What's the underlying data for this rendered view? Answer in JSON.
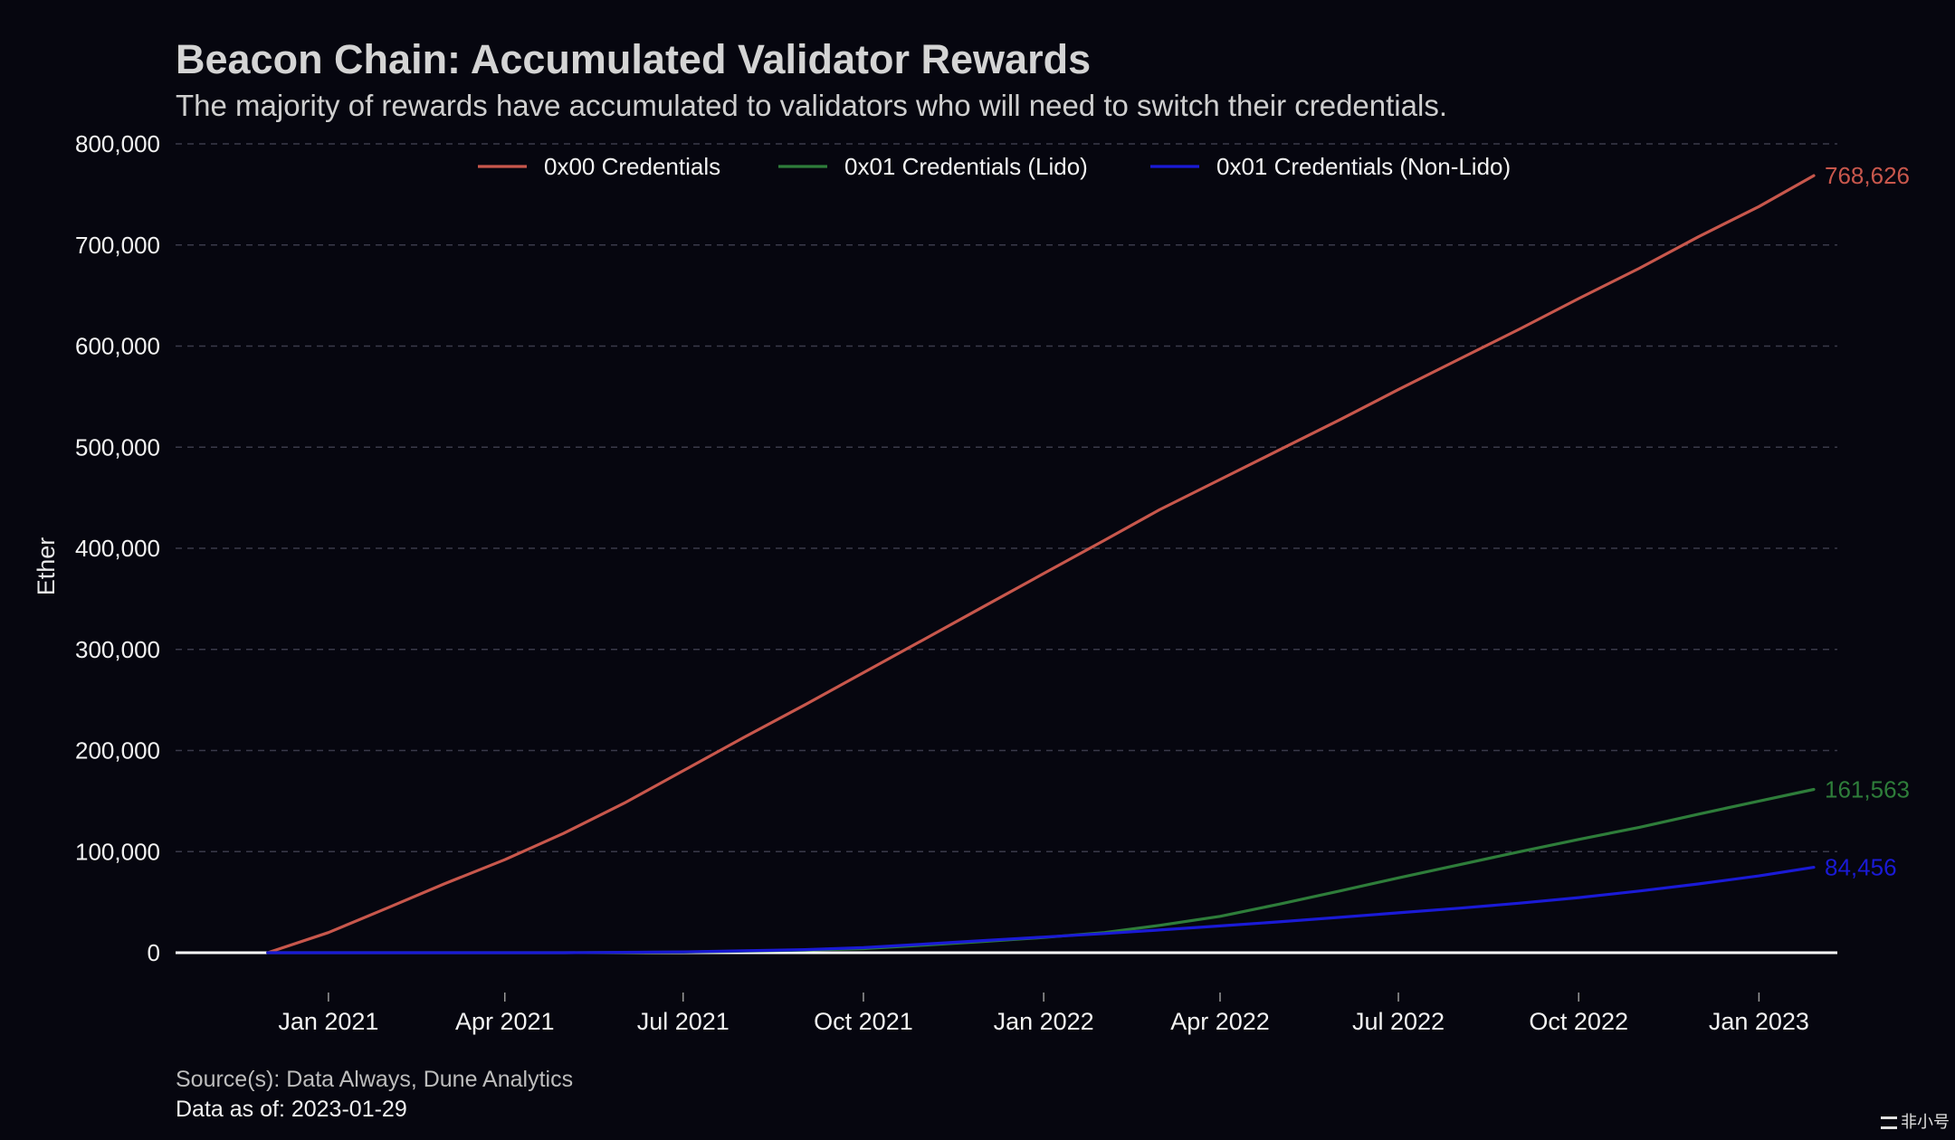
{
  "header": {
    "title": "Beacon Chain: Accumulated Validator Rewards",
    "subtitle": "The majority of rewards have accumulated to validators who will need to switch their credentials."
  },
  "footer": {
    "source": "Source(s): Data Always, Dune Analytics",
    "as_of": "Data as of: 2023-01-29"
  },
  "watermark": {
    "text": "非小号"
  },
  "colors": {
    "background": "#06060f",
    "grid": "#3a3a4a",
    "axis": "#ffffff",
    "text": "#f2f2f2"
  },
  "chart_data": {
    "type": "line",
    "title": "Beacon Chain: Accumulated Validator Rewards",
    "subtitle": "The majority of rewards have accumulated to validators who will need to switch their credentials.",
    "xlabel": "",
    "ylabel": "Ether",
    "xlim": [
      "2020-10-15",
      "2023-02-10"
    ],
    "ylim": [
      0,
      800000
    ],
    "yticks": [
      0,
      100000,
      200000,
      300000,
      400000,
      500000,
      600000,
      700000,
      800000
    ],
    "ytick_labels": [
      "0",
      "100,000",
      "200,000",
      "300,000",
      "400,000",
      "500,000",
      "600,000",
      "700,000",
      "800,000"
    ],
    "xticks": [
      "2021-01-01",
      "2021-04-01",
      "2021-07-01",
      "2021-10-01",
      "2022-01-01",
      "2022-04-01",
      "2022-07-01",
      "2022-10-01",
      "2023-01-01"
    ],
    "xtick_labels": [
      "Jan 2021",
      "Apr 2021",
      "Jul 2021",
      "Oct 2021",
      "Jan 2022",
      "Apr 2022",
      "Jul 2022",
      "Oct 2022",
      "Jan 2023"
    ],
    "grid": "horizontal dashed",
    "legend_position": "top-center",
    "series": [
      {
        "name": "0x00 Credentials",
        "color": "#c8574c",
        "end_label": "768,626",
        "points": [
          [
            "2020-12-01",
            0
          ],
          [
            "2021-01-01",
            20000
          ],
          [
            "2021-02-01",
            45000
          ],
          [
            "2021-03-01",
            68000
          ],
          [
            "2021-04-01",
            92000
          ],
          [
            "2021-05-01",
            118000
          ],
          [
            "2021-06-01",
            148000
          ],
          [
            "2021-07-01",
            180000
          ],
          [
            "2021-08-01",
            213000
          ],
          [
            "2021-09-01",
            245000
          ],
          [
            "2021-10-01",
            277000
          ],
          [
            "2021-11-01",
            310000
          ],
          [
            "2021-12-01",
            342000
          ],
          [
            "2022-01-01",
            375000
          ],
          [
            "2022-02-01",
            408000
          ],
          [
            "2022-03-01",
            438000
          ],
          [
            "2022-04-01",
            468000
          ],
          [
            "2022-05-01",
            497000
          ],
          [
            "2022-06-01",
            527000
          ],
          [
            "2022-07-01",
            557000
          ],
          [
            "2022-08-01",
            587000
          ],
          [
            "2022-09-01",
            617000
          ],
          [
            "2022-10-01",
            647000
          ],
          [
            "2022-11-01",
            677000
          ],
          [
            "2022-12-01",
            708000
          ],
          [
            "2023-01-01",
            738000
          ],
          [
            "2023-01-29",
            768626
          ]
        ]
      },
      {
        "name": "0x01 Credentials (Lido)",
        "color": "#2e7d3a",
        "end_label": "161,563",
        "points": [
          [
            "2020-12-01",
            0
          ],
          [
            "2021-05-01",
            0
          ],
          [
            "2021-07-01",
            500
          ],
          [
            "2021-09-01",
            2500
          ],
          [
            "2021-10-01",
            4000
          ],
          [
            "2021-11-01",
            7500
          ],
          [
            "2021-12-01",
            11000
          ],
          [
            "2022-01-01",
            15000
          ],
          [
            "2022-02-01",
            20000
          ],
          [
            "2022-03-01",
            27000
          ],
          [
            "2022-04-01",
            36000
          ],
          [
            "2022-05-01",
            48000
          ],
          [
            "2022-06-01",
            61000
          ],
          [
            "2022-07-01",
            74000
          ],
          [
            "2022-08-01",
            87000
          ],
          [
            "2022-09-01",
            100000
          ],
          [
            "2022-10-01",
            112000
          ],
          [
            "2022-11-01",
            124000
          ],
          [
            "2022-12-01",
            137000
          ],
          [
            "2023-01-01",
            150000
          ],
          [
            "2023-01-29",
            161563
          ]
        ]
      },
      {
        "name": "0x01 Credentials (Non-Lido)",
        "color": "#1a1ad6",
        "end_label": "84,456",
        "points": [
          [
            "2020-12-01",
            0
          ],
          [
            "2021-05-01",
            0
          ],
          [
            "2021-07-01",
            800
          ],
          [
            "2021-09-01",
            3000
          ],
          [
            "2021-10-01",
            5000
          ],
          [
            "2021-11-01",
            8500
          ],
          [
            "2021-12-01",
            12000
          ],
          [
            "2022-01-01",
            15500
          ],
          [
            "2022-02-01",
            19000
          ],
          [
            "2022-03-01",
            22500
          ],
          [
            "2022-04-01",
            26500
          ],
          [
            "2022-05-01",
            30500
          ],
          [
            "2022-06-01",
            35000
          ],
          [
            "2022-07-01",
            39500
          ],
          [
            "2022-08-01",
            44000
          ],
          [
            "2022-09-01",
            49000
          ],
          [
            "2022-10-01",
            54500
          ],
          [
            "2022-11-01",
            61000
          ],
          [
            "2022-12-01",
            68000
          ],
          [
            "2023-01-01",
            76000
          ],
          [
            "2023-01-29",
            84456
          ]
        ]
      }
    ]
  }
}
